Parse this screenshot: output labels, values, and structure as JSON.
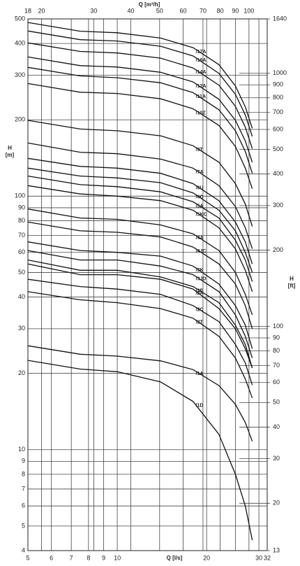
{
  "chart_data": {
    "type": "line",
    "x_label": "Q [l/s]",
    "x2_label": "Q [m³/h]",
    "y_label": "H",
    "y_label_unit": "[m]",
    "y2_label": "H",
    "y2_label_unit": "[ft]",
    "log_x": true,
    "log_y": true,
    "grid": true,
    "color": "#111111",
    "xlim": [
      5,
      32
    ],
    "xticks": [
      5,
      6,
      7,
      8,
      9,
      10,
      20,
      30,
      32
    ],
    "x2lim": [
      18,
      115.2
    ],
    "x2ticks": [
      18,
      20,
      30,
      40,
      50,
      60,
      70,
      80,
      90,
      100
    ],
    "ylim": [
      4,
      500
    ],
    "yticks": [
      4,
      5,
      6,
      7,
      8,
      9,
      10,
      20,
      30,
      40,
      50,
      60,
      70,
      80,
      90,
      100,
      200,
      300,
      400,
      500
    ],
    "y2lim": [
      13,
      1640
    ],
    "y2ticks": [
      13,
      20,
      30,
      40,
      50,
      60,
      70,
      80,
      90,
      100,
      200,
      300,
      400,
      500,
      600,
      700,
      800,
      900,
      1000,
      1640
    ],
    "x": [
      5,
      7.5,
      10,
      14,
      18,
      22,
      25,
      27,
      28.5
    ],
    "series": [
      {
        "name": "/17A",
        "values": [
          484,
          447,
          441,
          420,
          385,
          330,
          272,
          225,
          185
        ]
      },
      {
        "name": "/16A",
        "values": [
          448,
          414,
          409,
          390,
          357,
          305,
          252,
          209,
          172
        ]
      },
      {
        "name": "/14A",
        "values": [
          402,
          372,
          367,
          350,
          320,
          274,
          226,
          187,
          154
        ]
      },
      {
        "name": "/12A",
        "values": [
          354,
          327,
          323,
          308,
          282,
          241,
          199,
          165,
          136
        ]
      },
      {
        "name": "/11A",
        "values": [
          322,
          298,
          293,
          280,
          256,
          219,
          181,
          150,
          123
        ]
      },
      {
        "name": "/10Z",
        "values": [
          278,
          257,
          254,
          242,
          221,
          190,
          157,
          129,
          107
        ]
      },
      {
        "name": "/9T",
        "values": [
          199,
          184,
          181,
          173,
          158,
          136,
          112,
          93,
          76
        ]
      },
      {
        "name": "/7A",
        "values": [
          162,
          149,
          147,
          140,
          129,
          110,
          91,
          75,
          62
        ]
      },
      {
        "name": "/6U",
        "values": [
          141,
          131,
          129,
          123,
          112,
          96,
          79,
          66,
          54
        ]
      },
      {
        "name": "/6C",
        "values": [
          129,
          120,
          118,
          113,
          103,
          88,
          73,
          60,
          50
        ]
      },
      {
        "name": "/5A",
        "values": [
          120,
          111,
          109,
          104,
          95,
          82,
          67,
          56,
          46
        ]
      },
      {
        "name": "/5KC",
        "values": [
          110,
          102,
          100,
          96,
          88,
          75,
          62,
          51,
          42
        ]
      },
      {
        "name": "/4A",
        "values": [
          89,
          82,
          81,
          77,
          71,
          61,
          50,
          41,
          34
        ]
      },
      {
        "name": "/4JC",
        "values": [
          79,
          73,
          72,
          69,
          63,
          54,
          45,
          37,
          30
        ]
      },
      {
        "name": "/3K",
        "values": [
          66,
          61,
          60,
          58,
          53,
          45,
          37,
          31,
          25
        ]
      },
      {
        "name": "/3JD",
        "values": [
          61,
          56,
          56,
          53,
          49,
          42,
          34,
          28,
          23
        ]
      },
      {
        "name": "/3E",
        "values": [
          56,
          51,
          51,
          48,
          44,
          38,
          31,
          26,
          21
        ]
      },
      {
        "name": "/2A",
        "values": [
          54,
          49,
          49,
          47,
          43,
          36,
          30,
          25,
          21
        ]
      },
      {
        "name": "/2C",
        "values": [
          47,
          44,
          43,
          41,
          37,
          32,
          26,
          22,
          18
        ]
      },
      {
        "name": "/2T",
        "values": [
          42,
          39,
          38,
          36,
          33,
          28,
          23,
          19,
          16
        ]
      },
      {
        "name": "/1A",
        "values": [
          25.7,
          23.8,
          23.4,
          22.4,
          20.7,
          17.9,
          15.1,
          12.8,
          10.8
        ]
      },
      {
        "name": "/1D",
        "values": [
          22.5,
          20.8,
          20.3,
          18.5,
          15.5,
          11.5,
          8,
          6,
          4.4
        ]
      }
    ]
  }
}
